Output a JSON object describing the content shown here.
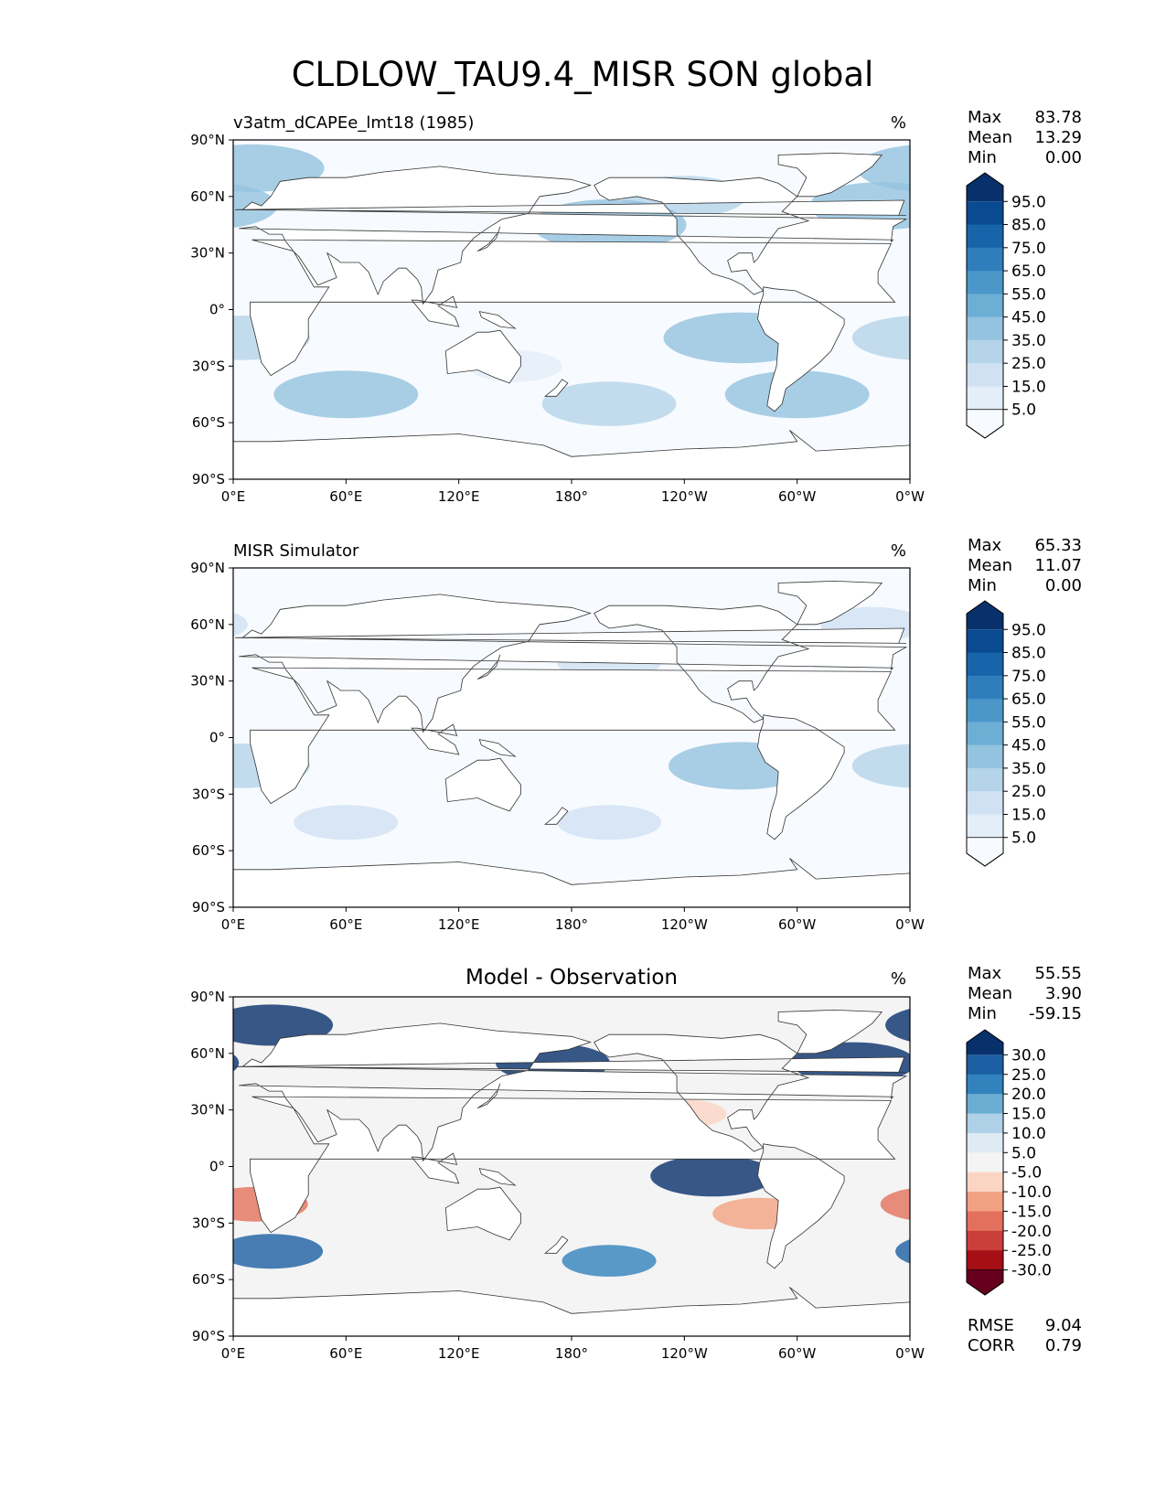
{
  "title": "CLDLOW_TAU9.4_MISR SON global",
  "chart_data": [
    {
      "type": "heatmap",
      "panel": "test",
      "title_left": "v3atm_dCAPEe_lmt18 (1985)",
      "title_center": "",
      "units": "%",
      "stats": {
        "labels": [
          "Max",
          "Mean",
          "Min"
        ],
        "values": [
          "83.78",
          "13.29",
          "0.00"
        ]
      },
      "xticks": [
        "0°E",
        "60°E",
        "120°E",
        "180°",
        "120°W",
        "60°W",
        "0°W"
      ],
      "yticks": [
        "90°N",
        "60°N",
        "30°N",
        "0°",
        "30°S",
        "60°S",
        "90°S"
      ],
      "xlim": [
        0,
        360
      ],
      "ylim": [
        -90,
        90
      ],
      "colorbar": {
        "colors": [
          "#f7fbff",
          "#e3eef9",
          "#cfe1f2",
          "#b5d4e9",
          "#93c3df",
          "#6daed5",
          "#4b97c9",
          "#2f7ebc",
          "#1864aa",
          "#0a4a90",
          "#08306b"
        ],
        "labels": [
          "95.0",
          "85.0",
          "75.0",
          "65.0",
          "55.0",
          "45.0",
          "35.0",
          "25.0",
          "15.0",
          "5.0"
        ]
      },
      "regions": [
        {
          "lon": 240,
          "lat": 60,
          "value": 30
        },
        {
          "lon": 10,
          "lat": 75,
          "value": 40
        },
        {
          "lon": 200,
          "lat": 45,
          "value": 45
        },
        {
          "lon": 60,
          "lat": -45,
          "value": 40
        },
        {
          "lon": 200,
          "lat": -50,
          "value": 35
        },
        {
          "lon": 300,
          "lat": -45,
          "value": 40
        },
        {
          "lon": 270,
          "lat": -15,
          "value": 45
        },
        {
          "lon": 5,
          "lat": -15,
          "value": 35
        },
        {
          "lon": 345,
          "lat": 55,
          "value": 40
        },
        {
          "lon": 150,
          "lat": -30,
          "value": 15
        }
      ]
    },
    {
      "type": "heatmap",
      "panel": "reference",
      "title_left": "MISR Simulator",
      "title_center": "",
      "units": "%",
      "stats": {
        "labels": [
          "Max",
          "Mean",
          "Min"
        ],
        "values": [
          "65.33",
          "11.07",
          "0.00"
        ]
      },
      "xticks": [
        "0°E",
        "60°E",
        "120°E",
        "180°",
        "120°W",
        "60°W",
        "0°W"
      ],
      "yticks": [
        "90°N",
        "60°N",
        "30°N",
        "0°",
        "30°S",
        "60°S",
        "90°S"
      ],
      "xlim": [
        0,
        360
      ],
      "ylim": [
        -90,
        90
      ],
      "colorbar": {
        "colors": [
          "#f7fbff",
          "#e3eef9",
          "#cfe1f2",
          "#b5d4e9",
          "#93c3df",
          "#6daed5",
          "#4b97c9",
          "#2f7ebc",
          "#1864aa",
          "#0a4a90",
          "#08306b"
        ],
        "labels": [
          "95.0",
          "85.0",
          "75.0",
          "65.0",
          "55.0",
          "45.0",
          "35.0",
          "25.0",
          "15.0",
          "5.0"
        ]
      },
      "regions": [
        {
          "lon": 270,
          "lat": -15,
          "value": 40
        },
        {
          "lon": 5,
          "lat": -15,
          "value": 35
        },
        {
          "lon": 60,
          "lat": -45,
          "value": 20
        },
        {
          "lon": 200,
          "lat": -45,
          "value": 20
        },
        {
          "lon": 200,
          "lat": 40,
          "value": 20
        },
        {
          "lon": 340,
          "lat": 60,
          "value": 20
        }
      ]
    },
    {
      "type": "heatmap",
      "panel": "difference",
      "title_left": "",
      "title_center": "Model - Observation",
      "units": "%",
      "stats": {
        "labels": [
          "Max",
          "Mean",
          "Min"
        ],
        "values": [
          "55.55",
          "3.90",
          "-59.15"
        ]
      },
      "extra_stats": {
        "labels": [
          "RMSE",
          "CORR"
        ],
        "values": [
          "9.04",
          "0.79"
        ]
      },
      "xticks": [
        "0°E",
        "60°E",
        "120°E",
        "180°",
        "120°W",
        "60°W",
        "0°W"
      ],
      "yticks": [
        "90°N",
        "60°N",
        "30°N",
        "0°",
        "30°S",
        "60°S",
        "90°S"
      ],
      "xlim": [
        0,
        360
      ],
      "ylim": [
        -90,
        90
      ],
      "colorbar": {
        "colors": [
          "#67001f",
          "#a50f15",
          "#cb3f3a",
          "#e3705c",
          "#f2a282",
          "#fbd5c3",
          "#f4f4f4",
          "#deebf3",
          "#aed1e7",
          "#6cadd4",
          "#3182bd",
          "#1c5fa2",
          "#08306b"
        ],
        "labels": [
          "30.0",
          "25.0",
          "20.0",
          "15.0",
          "10.0",
          "5.0",
          "-5.0",
          "-10.0",
          "-15.0",
          "-20.0",
          "-25.0",
          "-30.0"
        ]
      },
      "regions": [
        {
          "lon": 20,
          "lat": 75,
          "value": 30
        },
        {
          "lon": 170,
          "lat": 55,
          "value": 25
        },
        {
          "lon": 330,
          "lat": 55,
          "value": 30
        },
        {
          "lon": 255,
          "lat": -5,
          "value": 30
        },
        {
          "lon": 20,
          "lat": -45,
          "value": 20
        },
        {
          "lon": 200,
          "lat": -50,
          "value": 15
        },
        {
          "lon": 280,
          "lat": -25,
          "value": -15
        },
        {
          "lon": 100,
          "lat": -30,
          "value": -5
        },
        {
          "lon": 240,
          "lat": 28,
          "value": -10
        },
        {
          "lon": 12,
          "lat": -20,
          "value": -20
        }
      ]
    }
  ]
}
